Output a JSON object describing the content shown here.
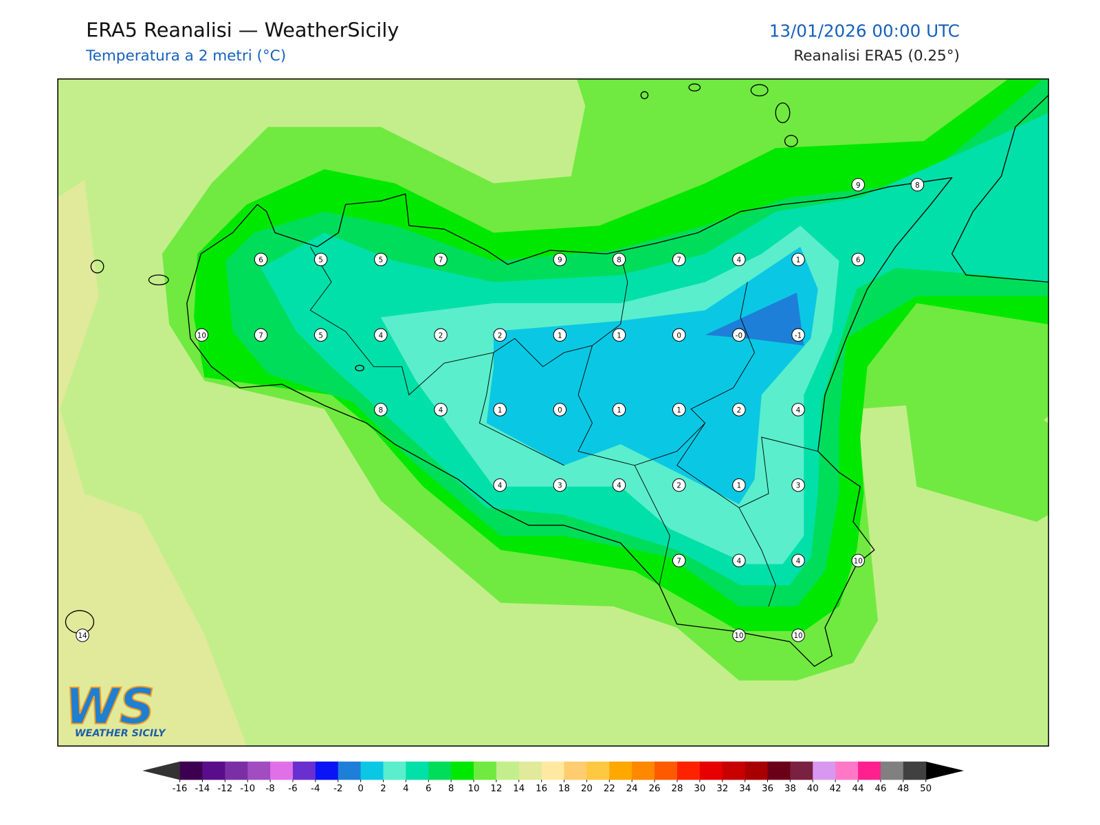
{
  "header": {
    "title": "ERA5 Reanalisi — WeatherSicily",
    "subtitle": "Temperatura a 2 metri (°C)",
    "date": "13/01/2026 00:00 UTC",
    "source": "Reanalisi ERA5 (0.25°)"
  },
  "stations": [
    6,
    5,
    5,
    7,
    9,
    8,
    7,
    4,
    1,
    6,
    9,
    8,
    10,
    7,
    5,
    4,
    2,
    2,
    1,
    1,
    0,
    {
      "value": 0,
      "label": "-0"
    },
    -1,
    8,
    4,
    1,
    0,
    1,
    1,
    2,
    4,
    4,
    3,
    4,
    2,
    1,
    3,
    7,
    4,
    4,
    10,
    14,
    10,
    10
  ],
  "logo": {
    "mark": "WS",
    "text": "WEATHER SICILY"
  },
  "colorbar": {
    "ticks": [
      -16,
      -14,
      -12,
      -10,
      -8,
      -6,
      -4,
      -2,
      0,
      2,
      4,
      6,
      8,
      10,
      12,
      14,
      16,
      18,
      20,
      22,
      24,
      26,
      28,
      30,
      32,
      34,
      36,
      38,
      40,
      42,
      44,
      46,
      48,
      50
    ],
    "colors": [
      "#3d0050",
      "#5a0d8a",
      "#7b2fa5",
      "#a14cc0",
      "#e070e8",
      "#6a2fcf",
      "#0a14f5",
      "#1e7fd8",
      "#0ac8e4",
      "#5aeecc",
      "#00e0a8",
      "#00dd5a",
      "#00e800",
      "#70ea40",
      "#c4ee8c",
      "#e0ea9a",
      "#ffe8a0",
      "#ffcc70",
      "#ffc840",
      "#ffa800",
      "#ff8800",
      "#ff5a00",
      "#ff2200",
      "#e80000",
      "#c80000",
      "#a80000",
      "#6a0018",
      "#7a2040",
      "#d898f0",
      "#ff78c8",
      "#ff2090",
      "#808080",
      "#404040"
    ],
    "under_color": "#333333",
    "over_color": "#000000"
  }
}
